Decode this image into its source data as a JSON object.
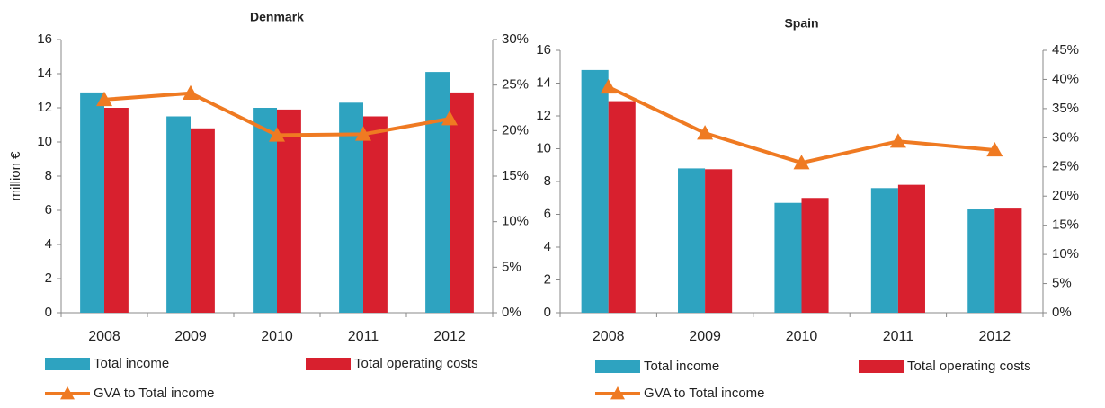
{
  "chart_data": [
    {
      "type": "bar",
      "title": "Denmark",
      "y_label": "million €",
      "categories": [
        "2008",
        "2009",
        "2010",
        "2011",
        "2012"
      ],
      "series": [
        {
          "name": "Total income",
          "color": "#2ea3c0",
          "values": [
            12.9,
            11.5,
            12.0,
            12.3,
            14.1
          ]
        },
        {
          "name": "Total operating costs",
          "color": "#d8202e",
          "values": [
            12.0,
            10.8,
            11.9,
            11.5,
            12.9
          ]
        },
        {
          "name": "GVA to Total income",
          "color": "#ef7a22",
          "type": "line",
          "axis": "y2",
          "values": [
            23.4,
            24.1,
            19.5,
            19.6,
            21.3
          ]
        }
      ],
      "ylim": [
        0,
        16
      ],
      "yticks": [
        0,
        2,
        4,
        6,
        8,
        10,
        12,
        14,
        16
      ],
      "y2lim": [
        0,
        30
      ],
      "y2ticks": [
        {
          "value": 0,
          "label": "0%"
        },
        {
          "value": 5,
          "label": "5%"
        },
        {
          "value": 10,
          "label": "10%"
        },
        {
          "value": 15,
          "label": "15%"
        },
        {
          "value": 20,
          "label": "20%"
        },
        {
          "value": 25,
          "label": "25%"
        },
        {
          "value": 30,
          "label": "30%"
        }
      ],
      "grid": false
    },
    {
      "type": "bar",
      "title": "Spain",
      "categories": [
        "2008",
        "2009",
        "2010",
        "2011",
        "2012"
      ],
      "series": [
        {
          "name": "Total income",
          "color": "#2ea3c0",
          "values": [
            14.8,
            8.8,
            6.7,
            7.6,
            6.3
          ]
        },
        {
          "name": "Total operating costs",
          "color": "#d8202e",
          "values": [
            12.9,
            8.75,
            7.0,
            7.8,
            6.35
          ]
        },
        {
          "name": "GVA to Total income",
          "color": "#ef7a22",
          "type": "line",
          "axis": "y2",
          "values": [
            38.7,
            30.8,
            25.7,
            29.4,
            27.9
          ]
        }
      ],
      "ylim": [
        0,
        16
      ],
      "yticks": [
        0,
        2,
        4,
        6,
        8,
        10,
        12,
        14,
        16
      ],
      "y2lim": [
        0,
        45
      ],
      "y2ticks": [
        {
          "value": 0,
          "label": "0%"
        },
        {
          "value": 5,
          "label": "5%"
        },
        {
          "value": 10,
          "label": "10%"
        },
        {
          "value": 15,
          "label": "15%"
        },
        {
          "value": 20,
          "label": "20%"
        },
        {
          "value": 25,
          "label": "25%"
        },
        {
          "value": 30,
          "label": "30%"
        },
        {
          "value": 35,
          "label": "35%"
        },
        {
          "value": 40,
          "label": "40%"
        },
        {
          "value": 45,
          "label": "45%"
        }
      ],
      "grid": false
    }
  ]
}
